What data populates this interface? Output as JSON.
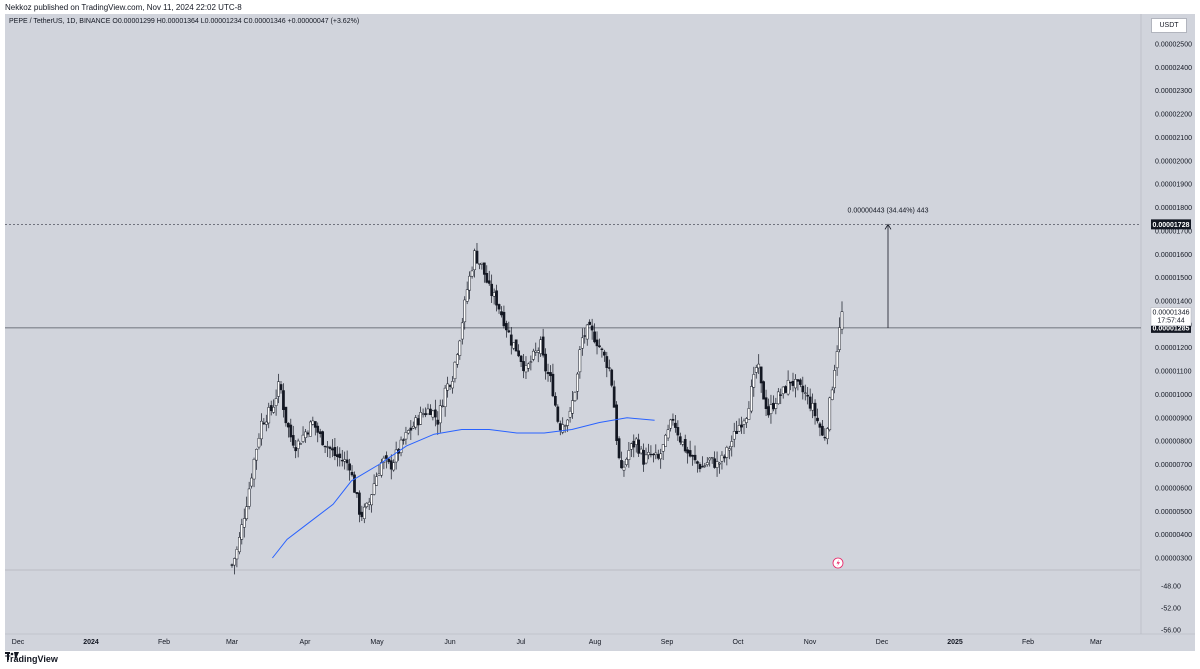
{
  "header": {
    "publisher": "Nekkoz published on TradingView.com, Nov 11, 2024 22:02 UTC-8"
  },
  "legend": {
    "symbol": "PEPE / TetherUS, 1D, BINANCE",
    "ohlc": "O0.00001299 H0.00001364 L0.00001234 C0.00001346 +0.00000047 (+3.62%)"
  },
  "unit_label": "USDT",
  "footer": {
    "brand": "TradingView"
  },
  "colors": {
    "background": "#d1d4dc",
    "candle": "#131722",
    "ma_line": "#2962ff",
    "level_line": "#50535e",
    "icon": "#e91e63"
  },
  "chart_data": {
    "type": "candlestick",
    "ylim": [
      2.7e-06,
      2.6e-06
    ],
    "price_ticks": [
      "0.00002500",
      "0.00002400",
      "0.00002300",
      "0.00002200",
      "0.00002100",
      "0.00002000",
      "0.00001900",
      "0.00001800",
      "0.00001700",
      "0.00001600",
      "0.00001500",
      "0.00001400",
      "0.00001300",
      "0.00001200",
      "0.00001100",
      "0.00001000",
      "0.00000900",
      "0.00000800",
      "0.00000700",
      "0.00000600",
      "0.00000500",
      "0.00000400",
      "0.00000300"
    ],
    "price_tick_values": [
      2.5e-05,
      2.4e-05,
      2.3e-05,
      2.2e-05,
      2.1e-05,
      2e-05,
      1.9e-05,
      1.8e-05,
      1.7e-05,
      1.6e-05,
      1.5e-05,
      1.4e-05,
      1.3e-05,
      1.2e-05,
      1.1e-05,
      1e-05,
      9e-06,
      8e-06,
      7e-06,
      6e-06,
      5e-06,
      4e-06,
      3e-06
    ],
    "oscillator_ticks": [
      "-48.00",
      "-52.00",
      "-56.00"
    ],
    "x_labels": [
      "Dec",
      "2024",
      "Feb",
      "Mar",
      "Apr",
      "May",
      "Jun",
      "Jul",
      "Aug",
      "Sep",
      "Oct",
      "Nov",
      "Dec",
      "2025",
      "Feb",
      "Mar"
    ],
    "levels": [
      {
        "value": 1.728e-05,
        "label": "0.00001728"
      },
      {
        "value": 1.285e-05,
        "label": "0.00001285"
      }
    ],
    "last_price": {
      "value": 1.346e-05,
      "label": "0.00001346",
      "countdown": "17:57:44"
    },
    "measure": {
      "from": 1.285e-05,
      "to": 1.728e-05,
      "label": "0.00000443 (34.44%) 443"
    },
    "price_path": [
      [
        0,
        2.7
      ],
      [
        3,
        3.4
      ],
      [
        8,
        5.4
      ],
      [
        12,
        7.2
      ],
      [
        16,
        8.8
      ],
      [
        22,
        9.4
      ],
      [
        26,
        10.5
      ],
      [
        29,
        9.0
      ],
      [
        32,
        8.2
      ],
      [
        35,
        7.8
      ],
      [
        40,
        8.4
      ],
      [
        44,
        8.8
      ],
      [
        48,
        8.2
      ],
      [
        52,
        7.8
      ],
      [
        56,
        7.4
      ],
      [
        60,
        7.2
      ],
      [
        64,
        7.0
      ],
      [
        66,
        6.2
      ],
      [
        70,
        4.8
      ],
      [
        74,
        5.2
      ],
      [
        78,
        6.4
      ],
      [
        82,
        7.2
      ],
      [
        86,
        6.9
      ],
      [
        92,
        7.8
      ],
      [
        96,
        8.4
      ],
      [
        100,
        8.8
      ],
      [
        104,
        9.2
      ],
      [
        108,
        9.4
      ],
      [
        112,
        8.9
      ],
      [
        116,
        10.2
      ],
      [
        120,
        10.8
      ],
      [
        124,
        12.5
      ],
      [
        128,
        14.5
      ],
      [
        132,
        16.0
      ],
      [
        136,
        15.5
      ],
      [
        140,
        14.5
      ],
      [
        144,
        14.0
      ],
      [
        148,
        13.2
      ],
      [
        152,
        12.3
      ],
      [
        156,
        11.8
      ],
      [
        160,
        11.0
      ],
      [
        164,
        11.6
      ],
      [
        168,
        12.1
      ],
      [
        170,
        11.2
      ],
      [
        174,
        10.5
      ],
      [
        178,
        8.6
      ],
      [
        180,
        8.8
      ],
      [
        184,
        9.1
      ],
      [
        188,
        10.8
      ],
      [
        190,
        12.3
      ],
      [
        194,
        12.8
      ],
      [
        198,
        12.4
      ],
      [
        202,
        11.7
      ],
      [
        206,
        11.0
      ],
      [
        208,
        9.5
      ],
      [
        210,
        7.5
      ],
      [
        212,
        6.6
      ],
      [
        216,
        7.6
      ],
      [
        220,
        8.0
      ],
      [
        224,
        7.2
      ],
      [
        228,
        7.4
      ],
      [
        232,
        7.2
      ],
      [
        236,
        8.0
      ],
      [
        240,
        9.0
      ],
      [
        244,
        8.1
      ],
      [
        248,
        7.5
      ],
      [
        252,
        7.1
      ],
      [
        256,
        6.9
      ],
      [
        260,
        7.2
      ],
      [
        264,
        7.0
      ],
      [
        268,
        7.3
      ],
      [
        272,
        8.0
      ],
      [
        276,
        8.7
      ],
      [
        280,
        9.2
      ],
      [
        284,
        10.6
      ],
      [
        286,
        11.4
      ],
      [
        288,
        10.3
      ],
      [
        292,
        9.2
      ],
      [
        296,
        9.8
      ],
      [
        300,
        10.1
      ],
      [
        304,
        10.6
      ],
      [
        308,
        10.3
      ],
      [
        312,
        10.0
      ],
      [
        316,
        9.4
      ],
      [
        320,
        8.6
      ],
      [
        322,
        8.0
      ],
      [
        324,
        8.8
      ],
      [
        326,
        10.0
      ],
      [
        328,
        11.2
      ],
      [
        330,
        12.4
      ],
      [
        332,
        13.46
      ]
    ],
    "ma_path": [
      [
        0,
        null
      ],
      [
        22,
        3.0
      ],
      [
        30,
        3.8
      ],
      [
        40,
        4.4
      ],
      [
        55,
        5.3
      ],
      [
        65,
        6.3
      ],
      [
        80,
        7.0
      ],
      [
        95,
        7.8
      ],
      [
        110,
        8.3
      ],
      [
        125,
        8.5
      ],
      [
        140,
        8.5
      ],
      [
        155,
        8.35
      ],
      [
        170,
        8.35
      ],
      [
        185,
        8.5
      ],
      [
        200,
        8.8
      ],
      [
        215,
        9.0
      ],
      [
        230,
        8.9
      ]
    ],
    "candle_count": 250,
    "candle_start_x": 227,
    "candle_end_x": 837
  }
}
